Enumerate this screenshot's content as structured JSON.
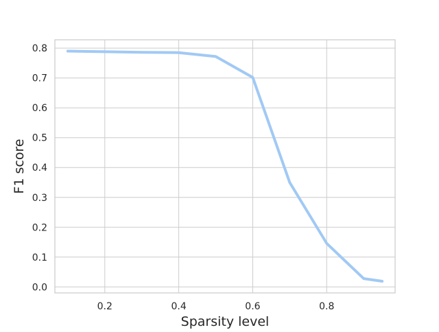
{
  "chart_data": {
    "type": "line",
    "title": "",
    "xlabel": "Sparsity level",
    "ylabel": "F1 score",
    "xlim": [
      0.065,
      0.985
    ],
    "ylim": [
      -0.02,
      0.828
    ],
    "xticks": [
      0.2,
      0.4,
      0.6,
      0.8
    ],
    "xtick_labels": [
      "0.2",
      "0.4",
      "0.6",
      "0.8"
    ],
    "yticks": [
      0.0,
      0.1,
      0.2,
      0.3,
      0.4,
      0.5,
      0.6,
      0.7,
      0.8
    ],
    "ytick_labels": [
      "0.0",
      "0.1",
      "0.2",
      "0.3",
      "0.4",
      "0.5",
      "0.6",
      "0.7",
      "0.8"
    ],
    "grid": true,
    "legend": "none",
    "series": [
      {
        "color": "#a1c9f4",
        "x": [
          0.1,
          0.2,
          0.3,
          0.4,
          0.5,
          0.6,
          0.7,
          0.8,
          0.9,
          0.95
        ],
        "y": [
          0.79,
          0.788,
          0.786,
          0.785,
          0.772,
          0.702,
          0.35,
          0.146,
          0.028,
          0.019
        ]
      }
    ]
  }
}
